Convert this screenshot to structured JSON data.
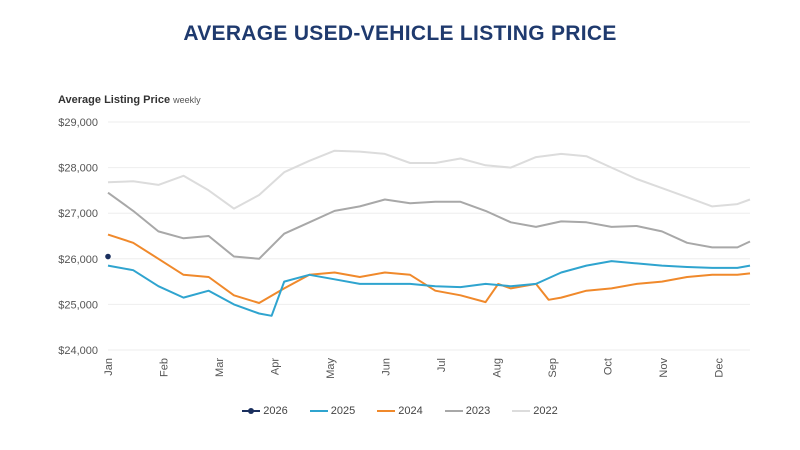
{
  "title": "AVERAGE USED-VEHICLE LISTING PRICE",
  "chart_data": {
    "type": "line",
    "title": "AVERAGE USED-VEHICLE LISTING PRICE",
    "ylabel": "Average Listing Price",
    "ylabel_note": "weekly",
    "xlabel": "",
    "ylim": [
      24000,
      29000
    ],
    "yticks": [
      "$24,000",
      "$25,000",
      "$26,000",
      "$27,000",
      "$28,000",
      "$29,000"
    ],
    "ytick_values": [
      24000,
      25000,
      26000,
      27000,
      28000,
      29000
    ],
    "months": [
      "Jan",
      "Feb",
      "Mar",
      "Apr",
      "May",
      "Jun",
      "Jul",
      "Aug",
      "Sep",
      "Oct",
      "Nov",
      "Dec"
    ],
    "x_unit": "week",
    "xlim": [
      1,
      52
    ],
    "grid": true,
    "legend": "bottom",
    "series": [
      {
        "name": "2026",
        "color": "#1a2f5e",
        "x": [
          1
        ],
        "values": [
          26050
        ]
      },
      {
        "name": "2025",
        "color": "#2fa4cf",
        "x": [
          1,
          3,
          5,
          7,
          9,
          11,
          13,
          14,
          15,
          17,
          19,
          21,
          23,
          25,
          27,
          29,
          31,
          33,
          35,
          37,
          39,
          41,
          43,
          45,
          47,
          49,
          51,
          52
        ],
        "values": [
          25850,
          25750,
          25400,
          25150,
          25300,
          25000,
          24800,
          24750,
          25500,
          25650,
          25550,
          25450,
          25450,
          25450,
          25400,
          25380,
          25450,
          25400,
          25450,
          25700,
          25850,
          25950,
          25900,
          25850,
          25820,
          25800,
          25800,
          25850
        ]
      },
      {
        "name": "2024",
        "color": "#f0892b",
        "x": [
          1,
          3,
          5,
          7,
          9,
          11,
          13,
          15,
          17,
          19,
          21,
          23,
          25,
          27,
          29,
          31,
          32,
          33,
          35,
          36,
          37,
          39,
          41,
          43,
          45,
          47,
          49,
          51,
          52
        ],
        "values": [
          26530,
          26350,
          26000,
          25650,
          25600,
          25200,
          25030,
          25350,
          25650,
          25700,
          25600,
          25700,
          25650,
          25300,
          25200,
          25050,
          25450,
          25350,
          25450,
          25100,
          25150,
          25300,
          25350,
          25450,
          25500,
          25600,
          25650,
          25650,
          25680
        ]
      },
      {
        "name": "2023",
        "color": "#a8a8a8",
        "x": [
          1,
          3,
          5,
          7,
          9,
          11,
          13,
          15,
          17,
          19,
          21,
          23,
          25,
          27,
          29,
          31,
          33,
          35,
          37,
          39,
          41,
          43,
          45,
          47,
          49,
          51,
          52
        ],
        "values": [
          27450,
          27050,
          26600,
          26450,
          26500,
          26050,
          26000,
          26550,
          26800,
          27050,
          27150,
          27300,
          27220,
          27250,
          27250,
          27050,
          26800,
          26700,
          26820,
          26800,
          26700,
          26720,
          26600,
          26350,
          26250,
          26250,
          26380
        ]
      },
      {
        "name": "2022",
        "color": "#dcdcdc",
        "x": [
          1,
          3,
          5,
          7,
          9,
          11,
          13,
          15,
          17,
          19,
          21,
          23,
          25,
          27,
          29,
          31,
          33,
          35,
          37,
          39,
          41,
          43,
          45,
          47,
          49,
          51,
          52
        ],
        "values": [
          27680,
          27700,
          27620,
          27820,
          27500,
          27100,
          27400,
          27900,
          28150,
          28370,
          28350,
          28300,
          28100,
          28100,
          28200,
          28050,
          28000,
          28230,
          28300,
          28250,
          28000,
          27750,
          27550,
          27350,
          27150,
          27200,
          27300
        ]
      }
    ]
  }
}
